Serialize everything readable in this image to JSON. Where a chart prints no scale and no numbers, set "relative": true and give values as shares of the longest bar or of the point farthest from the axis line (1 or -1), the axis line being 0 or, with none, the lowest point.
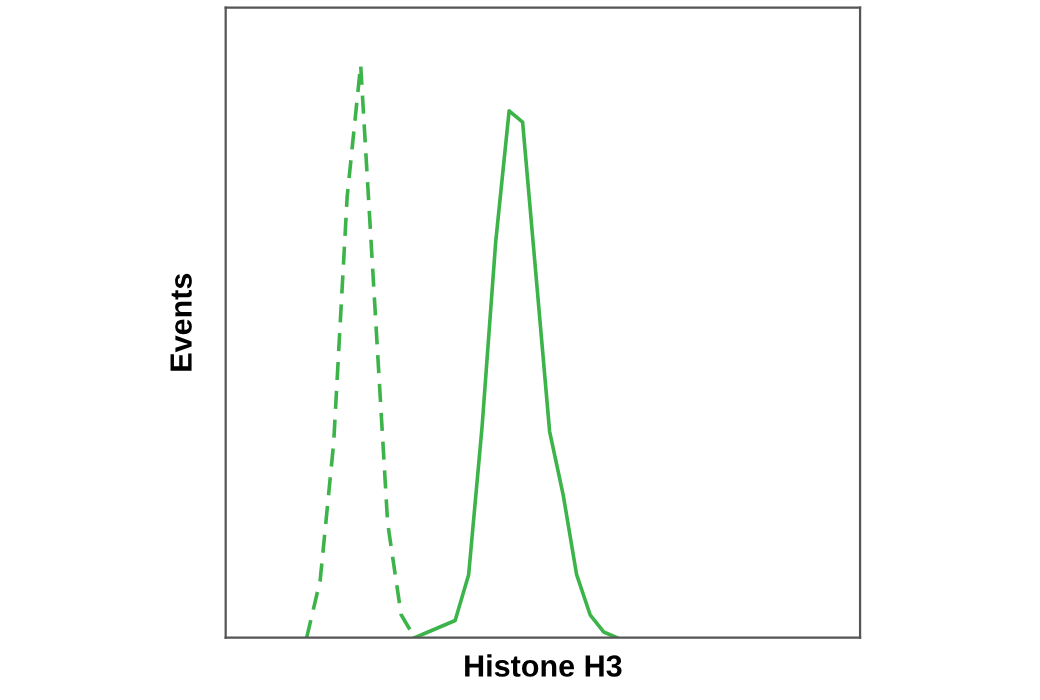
{
  "chart_data": {
    "type": "line",
    "relative": true,
    "xlabel": "Histone H3",
    "ylabel": "Events",
    "marker": "none",
    "categories": [
      null,
      null,
      null,
      null,
      null,
      null,
      null,
      null,
      null,
      null,
      null,
      null,
      null,
      null,
      null,
      null,
      null,
      null,
      null,
      null,
      null,
      null,
      null,
      null,
      null,
      null,
      null,
      null,
      null,
      null,
      null,
      null,
      null,
      null,
      null,
      null,
      null,
      null,
      null,
      null,
      null,
      null,
      null,
      null,
      null,
      null,
      null,
      null
    ],
    "series": [
      {
        "color": "#3cb44a",
        "line_style": "dashed",
        "values": [
          null,
          null,
          null,
          null,
          null,
          null,
          0,
          0.1,
          0.34,
          0.77,
          1,
          0.6,
          0.2,
          0.04,
          0,
          null,
          null,
          null,
          null,
          null,
          null,
          null,
          null,
          null,
          null,
          null,
          null,
          null,
          null,
          null,
          null,
          null,
          null,
          null,
          null,
          null,
          null,
          null,
          null,
          null,
          null,
          null,
          null,
          null,
          null,
          null,
          null,
          null
        ]
      },
      {
        "color": "#3cb44a",
        "line_style": "solid",
        "values": [
          null,
          null,
          null,
          null,
          null,
          null,
          null,
          null,
          null,
          null,
          null,
          null,
          null,
          null,
          0,
          0.01,
          0.02,
          0.03,
          0.11,
          0.37,
          0.69,
          0.92,
          0.9,
          0.63,
          0.36,
          0.25,
          0.11,
          0.04,
          0.01,
          0,
          null,
          null,
          null,
          null,
          null,
          null,
          null,
          null,
          null,
          null,
          null,
          null,
          null,
          null,
          null,
          null,
          null,
          null
        ]
      }
    ]
  }
}
